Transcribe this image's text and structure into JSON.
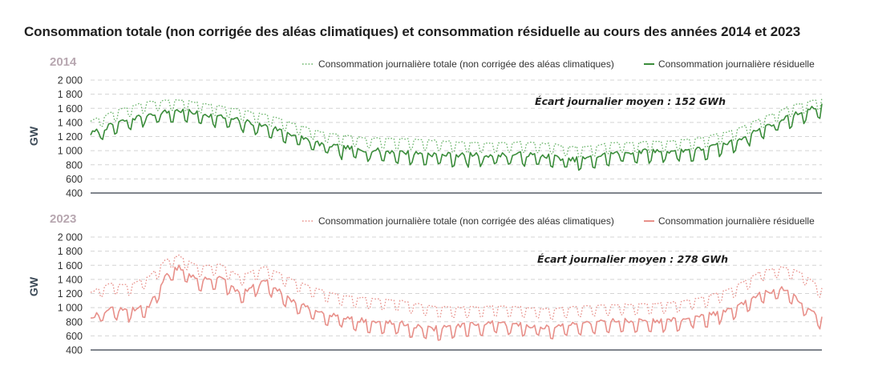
{
  "title": "Consommation totale (non corrigée des aléas climatiques) et consommation résiduelle au cours des années 2014 et 2023",
  "chart_data": [
    {
      "type": "line",
      "panel_label": "2014",
      "ylabel": "GW",
      "ylim": [
        400,
        2000
      ],
      "yticks": [
        400,
        600,
        800,
        1000,
        1200,
        1400,
        1600,
        1800,
        2000
      ],
      "ytick_labels": [
        "400",
        "600",
        "800",
        "1 000",
        "1 200",
        "1 400",
        "1 600",
        "1 800",
        "2 000"
      ],
      "grid": true,
      "legend_position": "top-right",
      "annotation": "Écart journalier moyen : 152 GWh",
      "colors": {
        "label": "#b7a7b0",
        "line": "#3a8c3a",
        "dotted": "#6bb56b"
      },
      "series": [
        {
          "name": "Consommation journalière totale (non corrigée des aléas climatiques)",
          "style": "dotted",
          "anchors": [
            [
              1,
              1400
            ],
            [
              15,
              1560
            ],
            [
              30,
              1680
            ],
            [
              45,
              1700
            ],
            [
              60,
              1640
            ],
            [
              75,
              1560
            ],
            [
              90,
              1480
            ],
            [
              105,
              1340
            ],
            [
              115,
              1250
            ],
            [
              125,
              1200
            ],
            [
              140,
              1160
            ],
            [
              155,
              1150
            ],
            [
              170,
              1130
            ],
            [
              185,
              1100
            ],
            [
              200,
              1090
            ],
            [
              215,
              1100
            ],
            [
              230,
              1080
            ],
            [
              240,
              1030
            ],
            [
              250,
              1040
            ],
            [
              260,
              1090
            ],
            [
              275,
              1100
            ],
            [
              290,
              1120
            ],
            [
              305,
              1160
            ],
            [
              320,
              1260
            ],
            [
              335,
              1440
            ],
            [
              350,
              1620
            ],
            [
              365,
              1720
            ]
          ]
        },
        {
          "name": "Consommation journalière résiduelle",
          "style": "solid",
          "anchors": [
            [
              1,
              1220
            ],
            [
              15,
              1380
            ],
            [
              30,
              1500
            ],
            [
              45,
              1550
            ],
            [
              60,
              1490
            ],
            [
              75,
              1410
            ],
            [
              90,
              1320
            ],
            [
              105,
              1180
            ],
            [
              115,
              1080
            ],
            [
              125,
              1030
            ],
            [
              140,
              990
            ],
            [
              155,
              960
            ],
            [
              170,
              930
            ],
            [
              185,
              920
            ],
            [
              200,
              920
            ],
            [
              215,
              930
            ],
            [
              230,
              900
            ],
            [
              240,
              850
            ],
            [
              250,
              880
            ],
            [
              260,
              940
            ],
            [
              275,
              970
            ],
            [
              290,
              980
            ],
            [
              305,
              1000
            ],
            [
              320,
              1100
            ],
            [
              335,
              1300
            ],
            [
              350,
              1480
            ],
            [
              365,
              1620
            ]
          ]
        }
      ]
    },
    {
      "type": "line",
      "panel_label": "2023",
      "ylabel": "GW",
      "ylim": [
        400,
        2000
      ],
      "yticks": [
        400,
        600,
        800,
        1000,
        1200,
        1400,
        1600,
        1800,
        2000
      ],
      "ytick_labels": [
        "400",
        "600",
        "800",
        "1 000",
        "1 200",
        "1 400",
        "1 600",
        "1 800",
        "2 000"
      ],
      "grid": true,
      "legend_position": "top-right",
      "annotation": "Écart journalier moyen : 278 GWh",
      "colors": {
        "label": "#b7a7b0",
        "line": "#e8908a",
        "dotted": "#e8908a"
      },
      "series": [
        {
          "name": "Consommation journalière totale (non corrigée des aléas climatiques)",
          "style": "dotted",
          "anchors": [
            [
              1,
              1200
            ],
            [
              10,
              1320
            ],
            [
              20,
              1300
            ],
            [
              30,
              1420
            ],
            [
              38,
              1650
            ],
            [
              45,
              1720
            ],
            [
              55,
              1560
            ],
            [
              65,
              1600
            ],
            [
              75,
              1430
            ],
            [
              88,
              1560
            ],
            [
              100,
              1400
            ],
            [
              110,
              1280
            ],
            [
              125,
              1160
            ],
            [
              140,
              1110
            ],
            [
              155,
              1080
            ],
            [
              170,
              1000
            ],
            [
              185,
              980
            ],
            [
              200,
              1000
            ],
            [
              215,
              990
            ],
            [
              230,
              960
            ],
            [
              245,
              1000
            ],
            [
              260,
              1020
            ],
            [
              275,
              1030
            ],
            [
              290,
              1050
            ],
            [
              305,
              1120
            ],
            [
              320,
              1250
            ],
            [
              335,
              1500
            ],
            [
              345,
              1560
            ],
            [
              355,
              1480
            ],
            [
              365,
              1250
            ]
          ]
        },
        {
          "name": "Consommation journalière résiduelle",
          "style": "solid",
          "anchors": [
            [
              1,
              850
            ],
            [
              10,
              960
            ],
            [
              20,
              940
            ],
            [
              30,
              1000
            ],
            [
              38,
              1420
            ],
            [
              45,
              1560
            ],
            [
              55,
              1360
            ],
            [
              65,
              1420
            ],
            [
              75,
              1180
            ],
            [
              88,
              1360
            ],
            [
              100,
              1100
            ],
            [
              110,
              960
            ],
            [
              125,
              860
            ],
            [
              140,
              780
            ],
            [
              155,
              760
            ],
            [
              170,
              680
            ],
            [
              185,
              720
            ],
            [
              200,
              760
            ],
            [
              215,
              740
            ],
            [
              230,
              700
            ],
            [
              245,
              760
            ],
            [
              260,
              800
            ],
            [
              275,
              790
            ],
            [
              290,
              800
            ],
            [
              305,
              860
            ],
            [
              320,
              950
            ],
            [
              335,
              1180
            ],
            [
              345,
              1260
            ],
            [
              355,
              1060
            ],
            [
              365,
              820
            ]
          ]
        }
      ]
    }
  ]
}
